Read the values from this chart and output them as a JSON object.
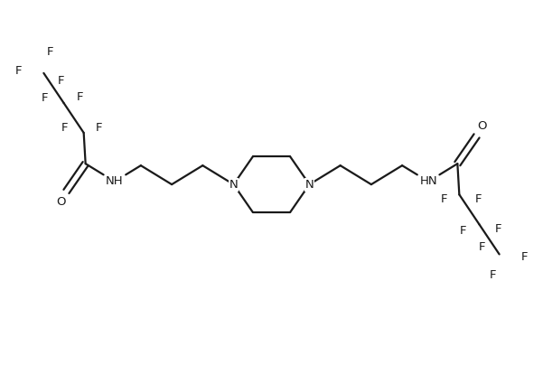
{
  "bg_color": "#ffffff",
  "line_color": "#1a1a1a",
  "text_color": "#1a1a1a",
  "bond_width": 1.6,
  "font_size": 9.5,
  "figsize": [
    6.01,
    4.25
  ],
  "dpi": 100,
  "xlim": [
    0,
    10
  ],
  "ylim": [
    0,
    7.5
  ]
}
